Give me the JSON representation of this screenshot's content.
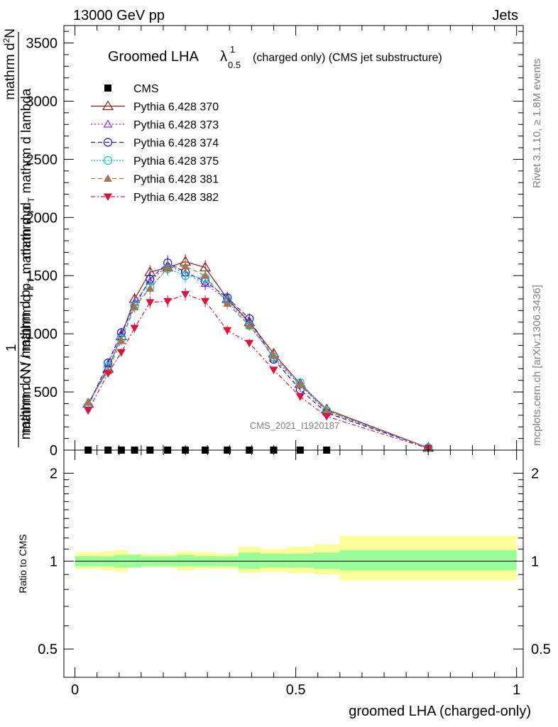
{
  "header": {
    "energy_label": "13000 GeV pp",
    "process_label": "Jets"
  },
  "side_labels": {
    "rivet": "Rivet 3.1.10, ≥ 1.8M events",
    "mcplots": "mcplots.cern.ch [arXiv:1306.3436]"
  },
  "chart_data": [
    {
      "type": "line",
      "title_main": "Groomed LHA",
      "title_lambda": "λ",
      "title_sup": "1",
      "title_sub": "0.5",
      "title_rest": "(charged only) (CMS jet substructure)",
      "watermark": "CMS_2021_I1920187",
      "ylabel_top": "1",
      "ylabel_mid": "mathrm d N / mathrm d p",
      "ylabel_bottom": "mathrm d N / mathrm d p",
      "ylabel_overlap_1": "mathrm d^2N",
      "ylabel_overlap_2": "mathrm d p mathrm d lambda",
      "ylabel_full": "1 / mathrm d N / mathrm d p_T mathrm d^2N / mathrm d p_T mathrm d lambda",
      "ylim": [
        0,
        3650
      ],
      "yticks": [
        0,
        500,
        1000,
        1500,
        2000,
        2500,
        3000,
        3500
      ],
      "ytick_labels": [
        "0",
        "500",
        "1000",
        "1500",
        "2000",
        "2500",
        "3000",
        "3500"
      ],
      "xlim": [
        -0.025,
        1.015
      ],
      "x": [
        0.03,
        0.075,
        0.105,
        0.135,
        0.17,
        0.21,
        0.25,
        0.295,
        0.345,
        0.395,
        0.45,
        0.51,
        0.57,
        0.8
      ],
      "cms_points": {
        "name": "CMS",
        "x": [
          0.03,
          0.075,
          0.105,
          0.135,
          0.17,
          0.21,
          0.25,
          0.295,
          0.345,
          0.395,
          0.45,
          0.51,
          0.57
        ],
        "values": [
          0,
          0,
          0,
          0,
          0,
          0,
          0,
          0,
          0,
          0,
          0,
          0,
          0
        ]
      },
      "series": [
        {
          "name": "Pythia 6.428 370",
          "color": "#8b1a1a",
          "dash": "",
          "marker": "triangle-open",
          "values": [
            400,
            700,
            980,
            1300,
            1530,
            1570,
            1620,
            1570,
            1300,
            1100,
            830,
            570,
            350,
            20
          ]
        },
        {
          "name": "Pythia 6.428 373",
          "color": "#8a2be2",
          "dash": "2,3",
          "marker": "triangle-open-small",
          "values": [
            390,
            740,
            1000,
            1270,
            1450,
            1590,
            1520,
            1430,
            1290,
            1090,
            790,
            560,
            330,
            20
          ]
        },
        {
          "name": "Pythia 6.428 374",
          "color": "#1a1acd",
          "dash": "6,4",
          "marker": "circle-open",
          "values": [
            380,
            750,
            1010,
            1240,
            1470,
            1610,
            1530,
            1450,
            1310,
            1130,
            780,
            520,
            320,
            20
          ]
        },
        {
          "name": "Pythia 6.428 375",
          "color": "#00ced1",
          "dash": "2,2",
          "marker": "circle-open",
          "values": [
            380,
            720,
            960,
            1240,
            1400,
            1560,
            1500,
            1480,
            1280,
            1070,
            800,
            580,
            340,
            20
          ]
        },
        {
          "name": "Pythia 6.428 381",
          "color": "#a0784b",
          "dash": "6,4",
          "marker": "triangle-filled",
          "values": [
            410,
            680,
            940,
            1230,
            1390,
            1570,
            1580,
            1500,
            1260,
            1070,
            810,
            560,
            340,
            20
          ]
        },
        {
          "name": "Pythia 6.428 382",
          "color": "#dc143c",
          "dash": "6,3,2,3",
          "marker": "triangle-down-filled",
          "values": [
            340,
            660,
            840,
            1050,
            1270,
            1280,
            1340,
            1280,
            1030,
            920,
            690,
            460,
            290,
            15
          ]
        }
      ]
    },
    {
      "type": "area",
      "ylabel": "Ratio to CMS",
      "xlabel": "groomed LHA (charged-only)",
      "xticks": [
        0,
        0.5,
        1
      ],
      "xtick_labels": [
        "0",
        "0.5",
        "1"
      ],
      "yticks": [
        0.5,
        1,
        2
      ],
      "ytick_labels": [
        "0.5",
        "1",
        "2"
      ],
      "log_y": true,
      "ylim": [
        0.4,
        2.4
      ],
      "reference_value": 1.0,
      "bin_edges": [
        0.0,
        0.06,
        0.09,
        0.12,
        0.15,
        0.19,
        0.23,
        0.27,
        0.32,
        0.37,
        0.42,
        0.48,
        0.54,
        0.6,
        1.0
      ],
      "band_green": [
        [
          0.96,
          1.04
        ],
        [
          0.96,
          1.04
        ],
        [
          0.95,
          1.05
        ],
        [
          0.95,
          1.05
        ],
        [
          0.96,
          1.04
        ],
        [
          0.96,
          1.04
        ],
        [
          0.96,
          1.05
        ],
        [
          0.96,
          1.04
        ],
        [
          0.96,
          1.04
        ],
        [
          0.94,
          1.07
        ],
        [
          0.95,
          1.06
        ],
        [
          0.95,
          1.06
        ],
        [
          0.94,
          1.07
        ],
        [
          0.93,
          1.09
        ]
      ],
      "band_yellow": [
        [
          0.94,
          1.07
        ],
        [
          0.93,
          1.08
        ],
        [
          0.92,
          1.09
        ],
        [
          0.95,
          1.06
        ],
        [
          0.95,
          1.06
        ],
        [
          0.95,
          1.06
        ],
        [
          0.93,
          1.08
        ],
        [
          0.94,
          1.07
        ],
        [
          0.94,
          1.06
        ],
        [
          0.91,
          1.12
        ],
        [
          0.92,
          1.1
        ],
        [
          0.91,
          1.12
        ],
        [
          0.9,
          1.14
        ],
        [
          0.86,
          1.22
        ]
      ],
      "colors": {
        "green": "#99ff99",
        "yellow": "#ffff99"
      }
    }
  ]
}
